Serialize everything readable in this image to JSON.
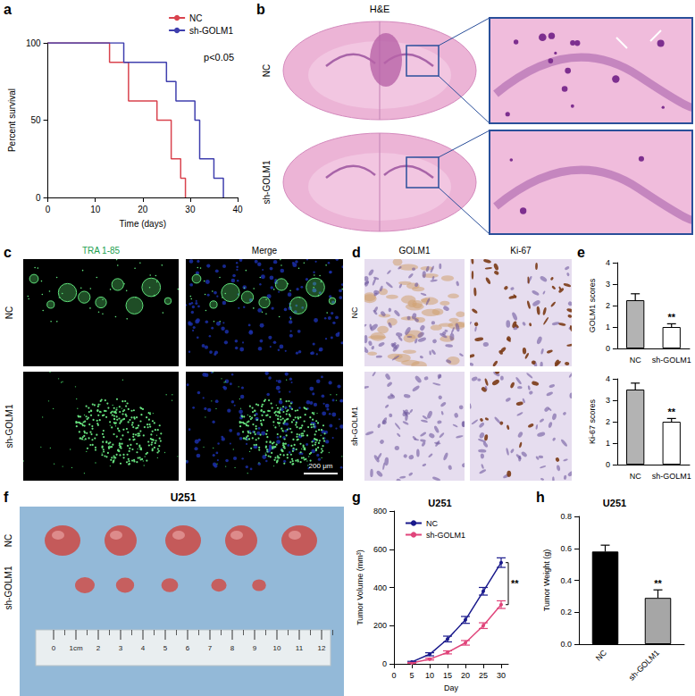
{
  "chart_data": [
    {
      "label": "a",
      "type": "step",
      "xlabel": "Time (days)",
      "ylabel": "Percent survival",
      "xlim": [
        0,
        40
      ],
      "xticks": [
        0,
        10,
        20,
        30,
        40
      ],
      "ylim": [
        0,
        100
      ],
      "yticks": [
        0,
        50,
        100
      ],
      "series": [
        {
          "name": "NC",
          "color": "#d9434e",
          "x": [
            0,
            13,
            17,
            23,
            26,
            28,
            29
          ],
          "values": [
            100,
            87.5,
            62.5,
            50,
            25,
            12.5,
            0
          ]
        },
        {
          "name": "sh-GOLM1",
          "color": "#3f3fae",
          "x": [
            0,
            16,
            25,
            27,
            31,
            32,
            35,
            37
          ],
          "values": [
            100,
            87.5,
            75,
            62.5,
            50,
            25,
            12.5,
            0
          ]
        }
      ],
      "annotations": [
        "p<0.05"
      ],
      "legend": "top-right",
      "grid": false
    },
    {
      "label": "e",
      "type": "bar",
      "categories": [
        "NC",
        "sh-GOLM1"
      ],
      "values": [
        2.25,
        1.0
      ],
      "errors": [
        0.3,
        0.15
      ],
      "colors": [
        "#b3b3b3",
        "#ffffff"
      ],
      "ylabel": "GOLM1 scores",
      "ylim": [
        0,
        4
      ],
      "yticks": [
        0,
        1,
        2,
        3,
        4
      ],
      "annotations": [
        "**"
      ],
      "grid": false
    },
    {
      "type": "bar",
      "categories": [
        "NC",
        "sh-GOLM1"
      ],
      "values": [
        3.5,
        2.0
      ],
      "errors": [
        0.3,
        0.15
      ],
      "colors": [
        "#b3b3b3",
        "#ffffff"
      ],
      "ylabel": "Ki-67 scores",
      "ylim": [
        0,
        4
      ],
      "yticks": [
        0,
        1,
        2,
        3,
        4
      ],
      "annotations": [
        "**"
      ],
      "grid": false
    },
    {
      "label": "g",
      "type": "line",
      "title": "U251",
      "xlabel": "Day",
      "ylabel": "Tumor Volume (mm³)",
      "x": [
        5,
        10,
        15,
        20,
        25,
        30
      ],
      "series": [
        {
          "name": "NC",
          "color": "#1a1a8c",
          "values": [
            10,
            50,
            130,
            230,
            380,
            530
          ],
          "errors": [
            3,
            8,
            15,
            18,
            20,
            25
          ]
        },
        {
          "name": "sh-GOLM1",
          "color": "#e0457b",
          "values": [
            5,
            25,
            60,
            110,
            200,
            310
          ],
          "errors": [
            2,
            5,
            8,
            12,
            15,
            20
          ]
        }
      ],
      "xlim": [
        0,
        32
      ],
      "xticks": [
        0,
        5,
        10,
        15,
        20,
        25,
        30
      ],
      "ylim": [
        0,
        800
      ],
      "yticks": [
        0,
        200,
        400,
        600,
        800
      ],
      "annotations": [
        "**"
      ],
      "legend": "top-left",
      "marker": "circle",
      "grid": false
    },
    {
      "label": "h",
      "type": "bar",
      "title": "U251",
      "categories": [
        "NC",
        "sh-GOLM1"
      ],
      "values": [
        0.58,
        0.29
      ],
      "errors": [
        0.04,
        0.05
      ],
      "colors": [
        "#000000",
        "#a6a6a6"
      ],
      "ylabel": "Tumor Weight (g)",
      "ylim": [
        0,
        0.8
      ],
      "yticks": [
        {
          "value": 0,
          "label": "0.0"
        },
        0.2,
        0.4,
        0.6,
        0.8
      ],
      "annotations": [
        "**"
      ],
      "grid": false
    }
  ],
  "images": {
    "b": {
      "label": "b",
      "title": "H&E",
      "rows": [
        "NC",
        "sh-GOLM1"
      ]
    },
    "c": {
      "label": "c",
      "columns": [
        "TRA 1-85",
        "Merge"
      ],
      "rows": [
        "NC",
        "sh-GOLM1"
      ],
      "scale_bar": "200 μm"
    },
    "d": {
      "label": "d",
      "columns": [
        "GOLM1",
        "Ki-67"
      ],
      "rows": [
        "NC",
        "sh-GOLM1"
      ]
    },
    "f": {
      "label": "f",
      "title": "U251",
      "rows": [
        "NC",
        "sh-GOLM1"
      ],
      "ruler": [
        "0",
        "1cm",
        "2",
        "3",
        "4",
        "5",
        "6",
        "7",
        "8",
        "9",
        "10",
        "11",
        "12"
      ]
    }
  }
}
